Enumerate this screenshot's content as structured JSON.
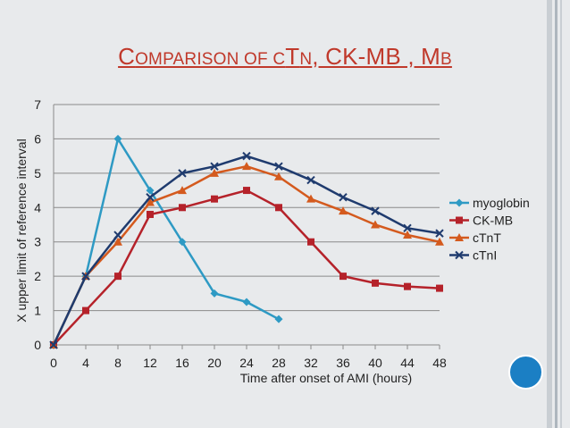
{
  "title": {
    "p1_big": "C",
    "p1_small": "OMPARISON OF C",
    "p2_big": "T",
    "p2_small": "N",
    "p3": ", CK-MB , M",
    "p4_small": "B"
  },
  "colors": {
    "title": "#c0392b",
    "accent_circle": "#1b7fc4",
    "myoglobin": "#2e9ac4",
    "ckmb": "#b5222a",
    "ctnt": "#d45a1e",
    "ctni": "#1f3b6e"
  },
  "chart_data": {
    "type": "line",
    "xlabel": "Time after onset of AMI (hours)",
    "ylabel": "X upper limit of reference interval",
    "xticks": [
      "0",
      "4",
      "8",
      "12",
      "16",
      "20",
      "24",
      "28",
      "32",
      "36",
      "40",
      "44",
      "48"
    ],
    "yticks": [
      "0",
      "1",
      "2",
      "3",
      "4",
      "5",
      "6",
      "7"
    ],
    "xlim": [
      0,
      48
    ],
    "ylim": [
      0,
      7
    ],
    "grid": "horizontal",
    "legend_position": "right",
    "series": [
      {
        "name": "myoglobin",
        "marker": "diamond",
        "color": "#2e9ac4",
        "x": [
          0,
          4,
          8,
          12,
          16,
          20,
          24,
          28
        ],
        "y": [
          0,
          2,
          6,
          4.5,
          3,
          1.5,
          1.25,
          0.75
        ]
      },
      {
        "name": "CK-MB",
        "marker": "square",
        "color": "#b5222a",
        "x": [
          0,
          4,
          8,
          12,
          16,
          20,
          24,
          28,
          32,
          36,
          40,
          44,
          48
        ],
        "y": [
          0,
          1,
          2,
          3.8,
          4,
          4.25,
          4.5,
          4,
          3,
          2,
          1.8,
          1.7,
          1.65
        ]
      },
      {
        "name": "cTnT",
        "marker": "triangle",
        "color": "#d45a1e",
        "x": [
          0,
          4,
          8,
          12,
          16,
          20,
          24,
          28,
          32,
          36,
          40,
          44,
          48
        ],
        "y": [
          0,
          2,
          3,
          4.15,
          4.5,
          5,
          5.2,
          4.9,
          4.25,
          3.9,
          3.5,
          3.2,
          3
        ]
      },
      {
        "name": "cTnI",
        "marker": "x",
        "color": "#1f3b6e",
        "x": [
          0,
          4,
          8,
          12,
          16,
          20,
          24,
          28,
          32,
          36,
          40,
          44,
          48
        ],
        "y": [
          0,
          2,
          3.2,
          4.3,
          5,
          5.2,
          5.5,
          5.2,
          4.8,
          4.3,
          3.9,
          3.4,
          3.25
        ]
      }
    ]
  }
}
